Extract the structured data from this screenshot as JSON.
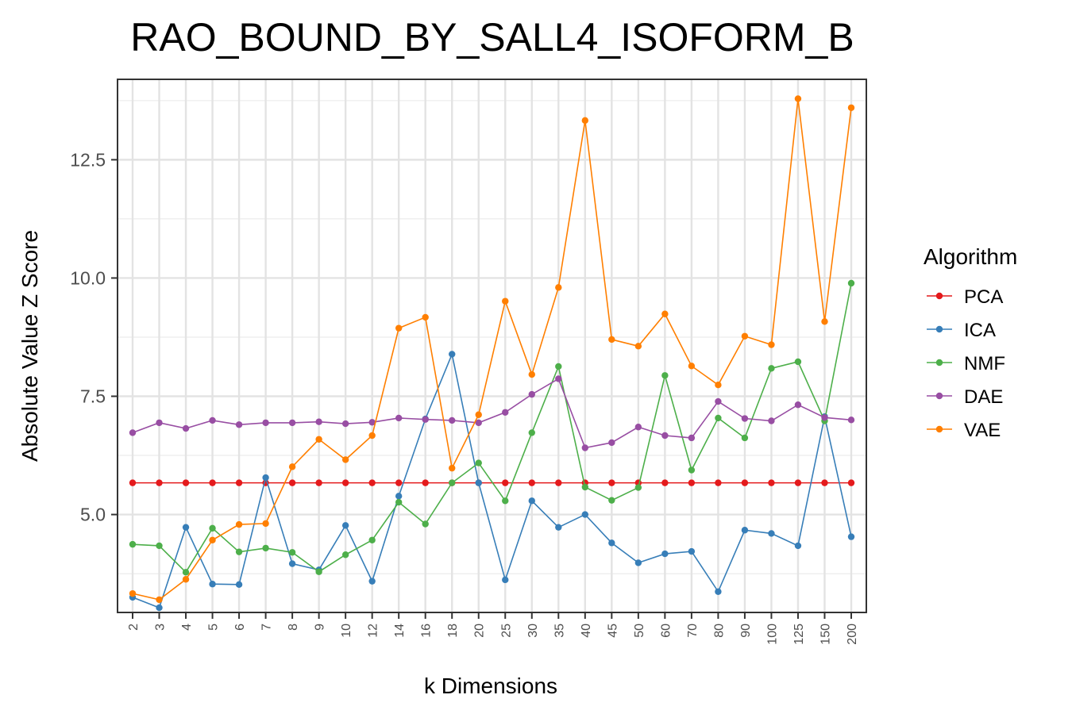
{
  "chart_data": {
    "type": "line",
    "title": "RAO_BOUND_BY_SALL4_ISOFORM_B",
    "xlabel": "k Dimensions",
    "ylabel": "Absolute Value Z Score",
    "categories": [
      "2",
      "3",
      "4",
      "5",
      "6",
      "7",
      "8",
      "9",
      "10",
      "12",
      "14",
      "16",
      "18",
      "20",
      "25",
      "30",
      "35",
      "40",
      "45",
      "50",
      "60",
      "70",
      "80",
      "90",
      "100",
      "125",
      "150",
      "200"
    ],
    "ylim": [
      2.93,
      14.2
    ],
    "yticks": [
      5.0,
      7.5,
      10.0,
      12.5
    ],
    "ytick_labels": [
      "5.0",
      "7.5",
      "10.0",
      "12.5"
    ],
    "grid": true,
    "legend": {
      "title": "Algorithm",
      "position": "right"
    },
    "series": [
      {
        "name": "PCA",
        "color": "#e41a1c",
        "values": [
          5.67,
          5.67,
          5.67,
          5.67,
          5.67,
          5.67,
          5.67,
          5.67,
          5.67,
          5.67,
          5.67,
          5.67,
          5.67,
          5.67,
          5.67,
          5.67,
          5.67,
          5.67,
          5.67,
          5.67,
          5.67,
          5.67,
          5.67,
          5.67,
          5.67,
          5.67,
          5.67,
          5.67
        ]
      },
      {
        "name": "ICA",
        "color": "#377eb8",
        "values": [
          3.25,
          3.03,
          4.73,
          3.53,
          3.52,
          5.78,
          3.96,
          3.83,
          4.77,
          3.59,
          5.39,
          7.02,
          8.39,
          5.67,
          3.62,
          5.29,
          4.73,
          5.0,
          4.4,
          3.98,
          4.17,
          4.22,
          3.37,
          4.67,
          4.6,
          4.34,
          7.07,
          4.53
        ]
      },
      {
        "name": "NMF",
        "color": "#4daf4a",
        "values": [
          4.37,
          4.34,
          3.78,
          4.71,
          4.21,
          4.29,
          4.2,
          3.79,
          4.15,
          4.46,
          5.26,
          4.8,
          5.67,
          6.09,
          5.29,
          6.73,
          8.13,
          5.58,
          5.3,
          5.57,
          7.94,
          5.94,
          7.04,
          6.62,
          8.09,
          8.23,
          6.98,
          9.89
        ]
      },
      {
        "name": "DAE",
        "color": "#984ea3",
        "values": [
          6.73,
          6.94,
          6.82,
          6.99,
          6.9,
          6.94,
          6.94,
          6.96,
          6.92,
          6.95,
          7.04,
          7.01,
          6.99,
          6.94,
          7.16,
          7.54,
          7.87,
          6.41,
          6.52,
          6.85,
          6.67,
          6.62,
          7.39,
          7.03,
          6.98,
          7.32,
          7.05,
          7.0
        ]
      },
      {
        "name": "VAE",
        "color": "#ff7f00",
        "values": [
          3.33,
          3.2,
          3.63,
          4.46,
          4.79,
          4.81,
          6.01,
          6.59,
          6.16,
          6.67,
          8.94,
          9.17,
          5.98,
          7.11,
          9.51,
          7.96,
          9.8,
          13.33,
          8.7,
          8.56,
          9.24,
          8.14,
          7.74,
          8.77,
          8.59,
          13.79,
          9.08,
          13.6
        ]
      }
    ]
  }
}
